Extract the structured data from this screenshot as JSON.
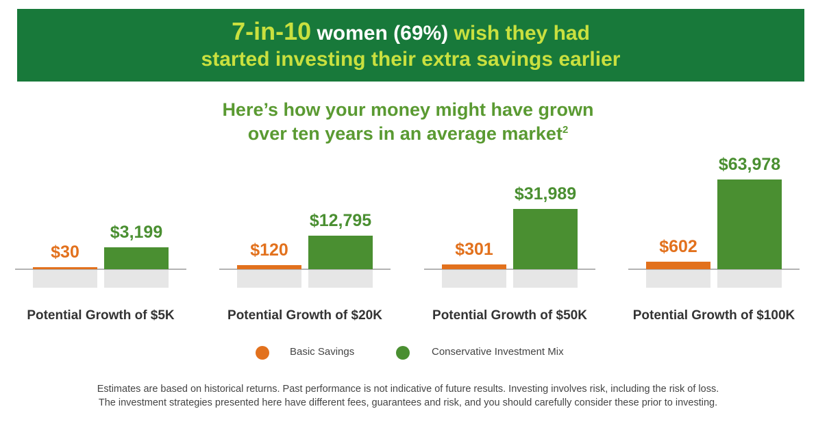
{
  "banner": {
    "stat": "7-in-10",
    "women": "women (69%)",
    "rest": "wish they had",
    "line2": "started investing their extra savings earlier"
  },
  "subtitle": {
    "line1": "Here’s how your money might have grown",
    "line2": "over ten years in an average market",
    "superscript": "2"
  },
  "colors": {
    "banner_bg": "#18793a",
    "banner_accent": "#c9e03f",
    "basic": "#e2711d",
    "conservative": "#4a8f31",
    "baseline_shadow": "#e6e6e6"
  },
  "chart_data": {
    "type": "bar",
    "categories": [
      "Potential Growth of $5K",
      "Potential Growth of $20K",
      "Potential Growth of $50K",
      "Potential Growth of $100K"
    ],
    "series": [
      {
        "name": "Basic Savings",
        "values": [
          30,
          120,
          301,
          602
        ],
        "labels": [
          "$30",
          "$120",
          "$301",
          "$602"
        ]
      },
      {
        "name": "Conservative Investment Mix",
        "values": [
          3199,
          12795,
          31989,
          63978
        ],
        "labels": [
          "$3,199",
          "$12,795",
          "$31,989",
          "$63,978"
        ]
      }
    ],
    "title": "",
    "xlabel": "",
    "ylabel": "",
    "legend": "bottom"
  },
  "legend": {
    "basic": "Basic Savings",
    "conservative": "Conservative Investment Mix"
  },
  "footnote": {
    "line1": "Estimates are based on historical returns. Past performance is not indicative of future results. Investing involves risk, including the risk of loss.",
    "line2": "The investment strategies presented here have different fees, guarantees and risk, and you should carefully consider these prior to investing."
  }
}
